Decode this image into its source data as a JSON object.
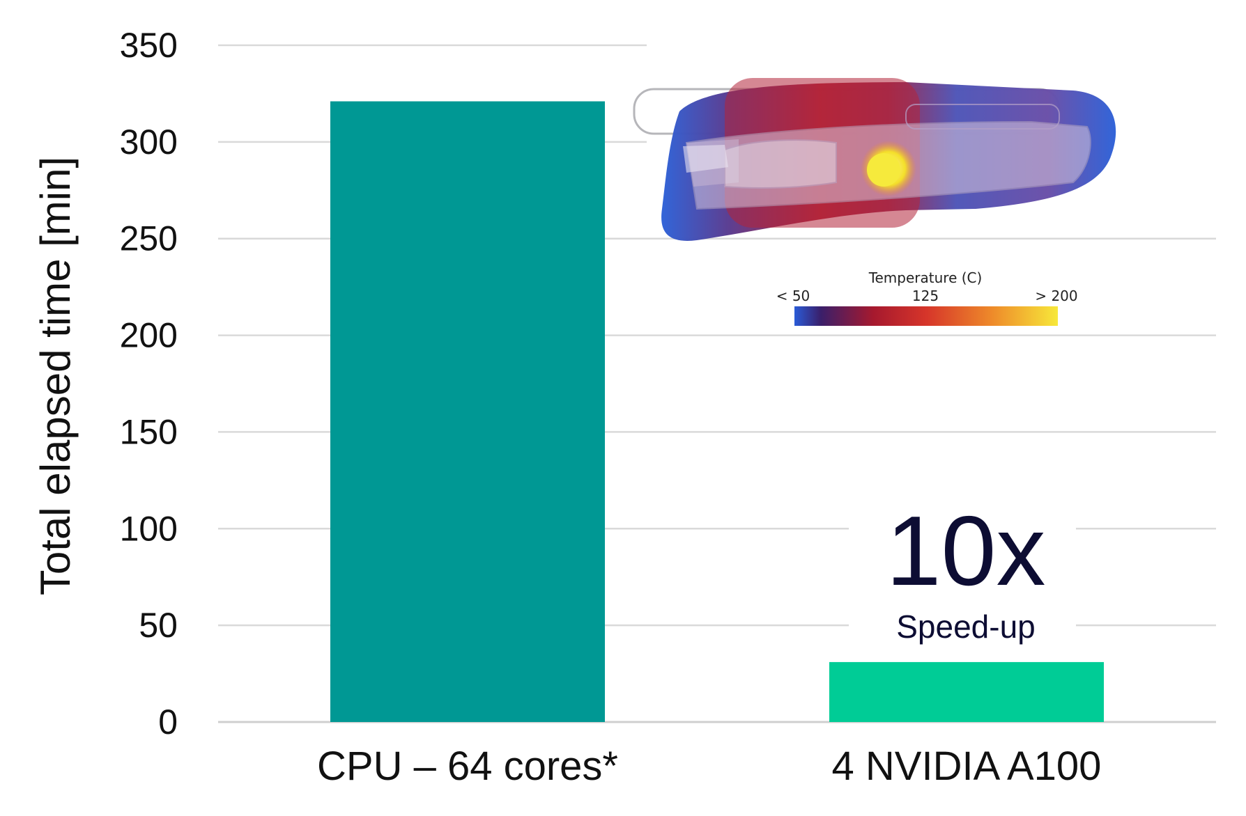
{
  "chart_data": {
    "type": "bar",
    "categories": [
      "CPU – 64 cores*",
      "4 NVIDIA A100"
    ],
    "values": [
      321,
      31
    ],
    "bar_colors": [
      "#009894",
      "#00cc96"
    ],
    "ylabel": "Total elapsed time [min]",
    "xlabel": "",
    "ylim": [
      0,
      350
    ],
    "yticks": [
      0,
      50,
      100,
      150,
      200,
      250,
      300,
      350
    ],
    "grid": true,
    "gridline_color": "#d9d9d9",
    "annotation": {
      "value": "10x",
      "text": "Speed-up",
      "color": "#0d0d33"
    }
  },
  "inset": {
    "colorbar_title": "Temperature (C)",
    "colorbar_ticks": [
      "< 50",
      "125",
      "> 200"
    ],
    "colorbar_colors": [
      "#2a5bd7",
      "#3a1f6a",
      "#a6192e",
      "#d6352a",
      "#ee8a2a",
      "#f7e83a"
    ]
  }
}
